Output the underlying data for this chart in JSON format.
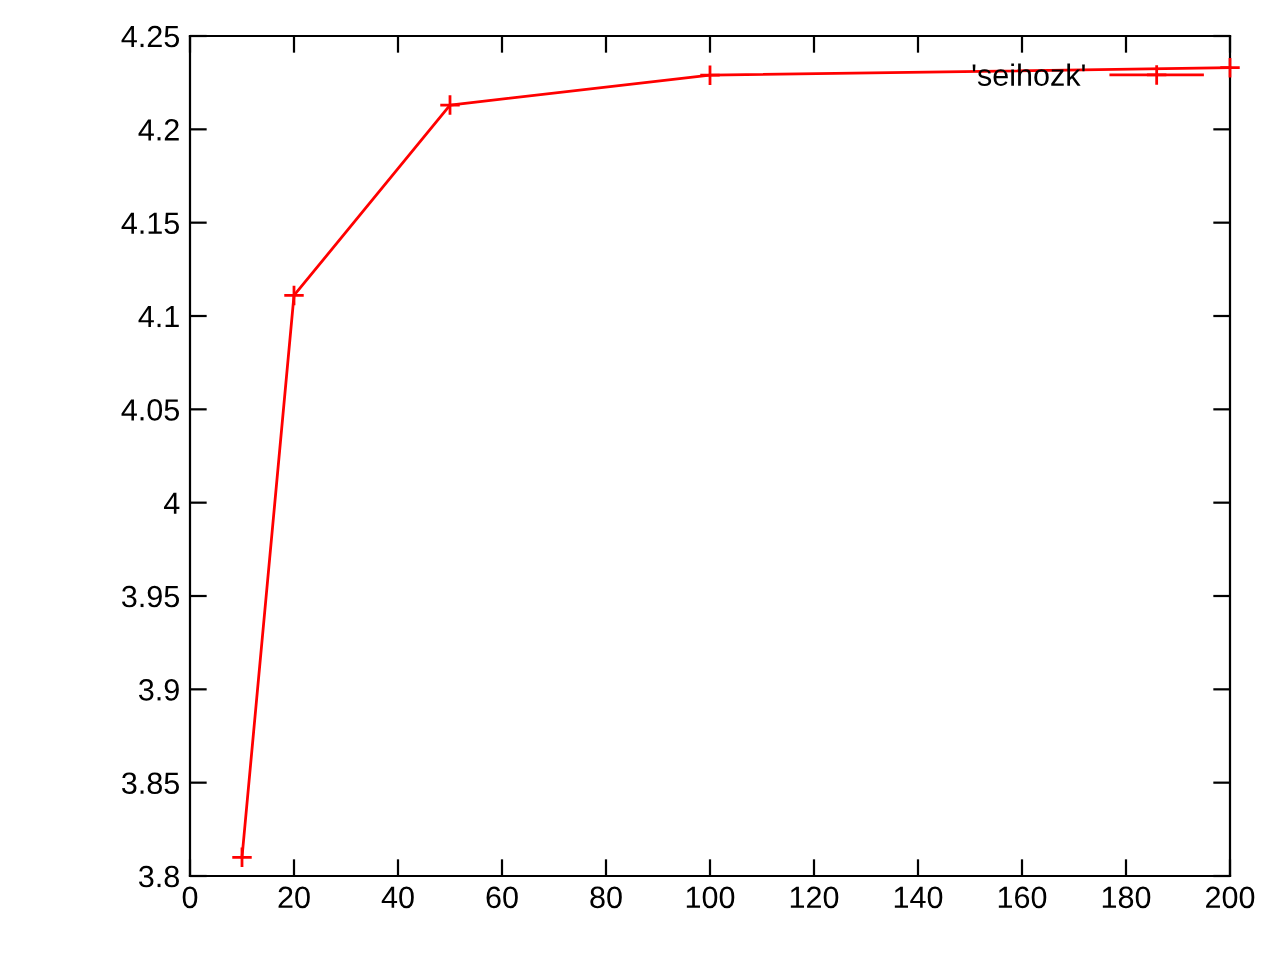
{
  "chart_data": {
    "type": "line",
    "x": [
      10,
      20,
      50,
      100,
      200
    ],
    "series": [
      {
        "name": "'seihozk'",
        "color": "#ff0000",
        "values": [
          3.81,
          4.111,
          4.213,
          4.229,
          4.233
        ]
      }
    ],
    "xlim": [
      0,
      200
    ],
    "xticks": [
      0,
      20,
      40,
      60,
      80,
      100,
      120,
      140,
      160,
      180,
      200
    ],
    "ylim": [
      3.8,
      4.25
    ],
    "yticks": [
      3.8,
      3.85,
      3.9,
      3.95,
      4,
      4.05,
      4.1,
      4.15,
      4.2,
      4.25
    ],
    "marker": "cross",
    "line_style": "solid",
    "legend": "top right",
    "grid": false
  }
}
